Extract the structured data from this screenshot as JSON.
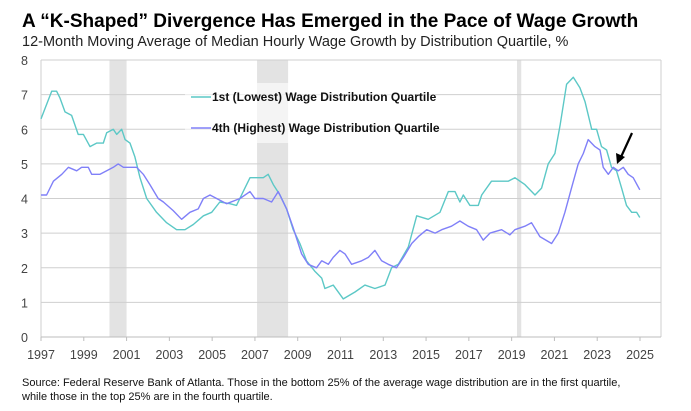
{
  "chart_data": {
    "type": "line",
    "title": "A “K-Shaped” Divergence Has Emerged in the Pace of Wage Growth",
    "subtitle": "12-Month Moving Average of Median Hourly Wage Growth by Distribution Quartile, %",
    "xlabel": "",
    "ylabel": "",
    "xlim": [
      1997,
      2026
    ],
    "ylim": [
      0,
      8
    ],
    "x_ticks": [
      "1997",
      "1999",
      "2001",
      "2003",
      "2005",
      "2007",
      "2009",
      "2011",
      "2013",
      "2015",
      "2017",
      "2019",
      "2021",
      "2023",
      "2025"
    ],
    "y_ticks": [
      "0",
      "1",
      "2",
      "3",
      "4",
      "5",
      "6",
      "7",
      "8"
    ],
    "grid": "horizontal",
    "legend_placement": "top-center",
    "recession_shading": [
      [
        2000.2,
        2001.0
      ],
      [
        2007.1,
        2008.55
      ],
      [
        2019.25,
        2019.45
      ]
    ],
    "annotation": "arrow pointing to crossover near 2024",
    "series": [
      {
        "name": "1st (Lowest) Wage Distribution Quartile",
        "color": "#5cc8c6",
        "points": [
          [
            1997.0,
            6.3
          ],
          [
            1997.5,
            7.1
          ],
          [
            1997.73,
            7.1
          ],
          [
            1997.89,
            6.9
          ],
          [
            1998.12,
            6.5
          ],
          [
            1998.43,
            6.4
          ],
          [
            1998.74,
            5.85
          ],
          [
            1998.98,
            5.85
          ],
          [
            1999.29,
            5.5
          ],
          [
            1999.6,
            5.6
          ],
          [
            1999.91,
            5.6
          ],
          [
            2000.07,
            5.9
          ],
          [
            2000.38,
            6.0
          ],
          [
            2000.54,
            5.85
          ],
          [
            2000.77,
            6.0
          ],
          [
            2000.93,
            5.7
          ],
          [
            2001.16,
            5.6
          ],
          [
            2001.39,
            5.2
          ],
          [
            2001.63,
            4.6
          ],
          [
            2001.94,
            4.0
          ],
          [
            2002.4,
            3.6
          ],
          [
            2002.87,
            3.3
          ],
          [
            2003.34,
            3.1
          ],
          [
            2003.73,
            3.1
          ],
          [
            2004.12,
            3.25
          ],
          [
            2004.59,
            3.5
          ],
          [
            2004.98,
            3.6
          ],
          [
            2005.36,
            3.9
          ],
          [
            2005.83,
            3.85
          ],
          [
            2006.14,
            3.8
          ],
          [
            2006.45,
            4.2
          ],
          [
            2006.77,
            4.6
          ],
          [
            2007.39,
            4.6
          ],
          [
            2007.62,
            4.7
          ],
          [
            2007.86,
            4.4
          ],
          [
            2008.17,
            4.1
          ],
          [
            2008.48,
            3.7
          ],
          [
            2008.79,
            3.1
          ],
          [
            2009.1,
            2.7
          ],
          [
            2009.41,
            2.2
          ],
          [
            2009.8,
            1.9
          ],
          [
            2010.12,
            1.7
          ],
          [
            2010.27,
            1.4
          ],
          [
            2010.66,
            1.5
          ],
          [
            2011.13,
            1.1
          ],
          [
            2011.68,
            1.3
          ],
          [
            2012.14,
            1.5
          ],
          [
            2012.61,
            1.4
          ],
          [
            2013.08,
            1.5
          ],
          [
            2013.39,
            2.0
          ],
          [
            2013.7,
            2.1
          ],
          [
            2014.17,
            2.6
          ],
          [
            2014.56,
            3.5
          ],
          [
            2015.1,
            3.4
          ],
          [
            2015.65,
            3.6
          ],
          [
            2016.04,
            4.2
          ],
          [
            2016.35,
            4.2
          ],
          [
            2016.58,
            3.9
          ],
          [
            2016.74,
            4.1
          ],
          [
            2017.05,
            3.8
          ],
          [
            2017.44,
            3.8
          ],
          [
            2017.6,
            4.1
          ],
          [
            2018.06,
            4.5
          ],
          [
            2018.84,
            4.5
          ],
          [
            2019.15,
            4.6
          ],
          [
            2019.62,
            4.4
          ],
          [
            2020.09,
            4.1
          ],
          [
            2020.4,
            4.3
          ],
          [
            2020.71,
            5.0
          ],
          [
            2021.02,
            5.3
          ],
          [
            2021.26,
            6.1
          ],
          [
            2021.57,
            7.3
          ],
          [
            2021.88,
            7.5
          ],
          [
            2022.19,
            7.2
          ],
          [
            2022.43,
            6.8
          ],
          [
            2022.74,
            6.0
          ],
          [
            2022.97,
            6.0
          ],
          [
            2023.2,
            5.5
          ],
          [
            2023.44,
            5.4
          ],
          [
            2023.67,
            4.9
          ],
          [
            2023.9,
            4.8
          ],
          [
            2024.14,
            4.3
          ],
          [
            2024.37,
            3.8
          ],
          [
            2024.61,
            3.6
          ],
          [
            2024.84,
            3.6
          ],
          [
            2024.99,
            3.45
          ]
        ]
      },
      {
        "name": "4th (Highest) Wage Distribution Quartile",
        "color": "#8080f8",
        "points": [
          [
            1997.0,
            4.1
          ],
          [
            1997.26,
            4.1
          ],
          [
            1997.58,
            4.5
          ],
          [
            1997.97,
            4.7
          ],
          [
            1998.28,
            4.9
          ],
          [
            1998.67,
            4.8
          ],
          [
            1998.9,
            4.9
          ],
          [
            1999.21,
            4.9
          ],
          [
            1999.37,
            4.7
          ],
          [
            1999.76,
            4.7
          ],
          [
            2000.07,
            4.8
          ],
          [
            2000.38,
            4.9
          ],
          [
            2000.61,
            5.0
          ],
          [
            2000.85,
            4.9
          ],
          [
            2001.47,
            4.9
          ],
          [
            2001.78,
            4.7
          ],
          [
            2002.09,
            4.4
          ],
          [
            2002.48,
            4.0
          ],
          [
            2002.72,
            3.9
          ],
          [
            2003.18,
            3.65
          ],
          [
            2003.57,
            3.4
          ],
          [
            2003.96,
            3.6
          ],
          [
            2004.35,
            3.7
          ],
          [
            2004.59,
            4.0
          ],
          [
            2004.9,
            4.1
          ],
          [
            2005.21,
            4.0
          ],
          [
            2005.68,
            3.85
          ],
          [
            2006.3,
            4.0
          ],
          [
            2006.77,
            4.2
          ],
          [
            2007.0,
            4.0
          ],
          [
            2007.39,
            4.0
          ],
          [
            2007.78,
            3.9
          ],
          [
            2008.09,
            4.2
          ],
          [
            2008.48,
            3.7
          ],
          [
            2008.79,
            3.15
          ],
          [
            2009.18,
            2.4
          ],
          [
            2009.49,
            2.1
          ],
          [
            2009.88,
            2.0
          ],
          [
            2010.12,
            2.2
          ],
          [
            2010.43,
            2.1
          ],
          [
            2010.66,
            2.3
          ],
          [
            2010.97,
            2.5
          ],
          [
            2011.21,
            2.4
          ],
          [
            2011.52,
            2.1
          ],
          [
            2011.99,
            2.2
          ],
          [
            2012.3,
            2.3
          ],
          [
            2012.61,
            2.5
          ],
          [
            2012.92,
            2.2
          ],
          [
            2013.23,
            2.1
          ],
          [
            2013.62,
            2.0
          ],
          [
            2013.94,
            2.3
          ],
          [
            2014.33,
            2.7
          ],
          [
            2014.64,
            2.9
          ],
          [
            2015.03,
            3.1
          ],
          [
            2015.42,
            3.0
          ],
          [
            2015.73,
            3.1
          ],
          [
            2016.19,
            3.2
          ],
          [
            2016.58,
            3.35
          ],
          [
            2016.97,
            3.2
          ],
          [
            2017.36,
            3.1
          ],
          [
            2017.67,
            2.8
          ],
          [
            2017.99,
            3.0
          ],
          [
            2018.53,
            3.1
          ],
          [
            2018.92,
            2.95
          ],
          [
            2019.15,
            3.1
          ],
          [
            2019.62,
            3.2
          ],
          [
            2019.93,
            3.3
          ],
          [
            2020.32,
            2.9
          ],
          [
            2020.87,
            2.7
          ],
          [
            2021.18,
            3.0
          ],
          [
            2021.49,
            3.6
          ],
          [
            2021.8,
            4.3
          ],
          [
            2022.11,
            5.0
          ],
          [
            2022.35,
            5.3
          ],
          [
            2022.58,
            5.7
          ],
          [
            2022.89,
            5.5
          ],
          [
            2023.13,
            5.4
          ],
          [
            2023.28,
            4.9
          ],
          [
            2023.52,
            4.7
          ],
          [
            2023.75,
            4.9
          ],
          [
            2023.98,
            4.8
          ],
          [
            2024.22,
            4.9
          ],
          [
            2024.45,
            4.7
          ],
          [
            2024.68,
            4.6
          ],
          [
            2024.99,
            4.25
          ]
        ]
      }
    ],
    "source": [
      "Source: Federal Reserve Bank of Atlanta. Those in the bottom 25% of the average wage distribution are in the first quartile,",
      "while those in the top 25% are in the fourth quartile."
    ]
  }
}
